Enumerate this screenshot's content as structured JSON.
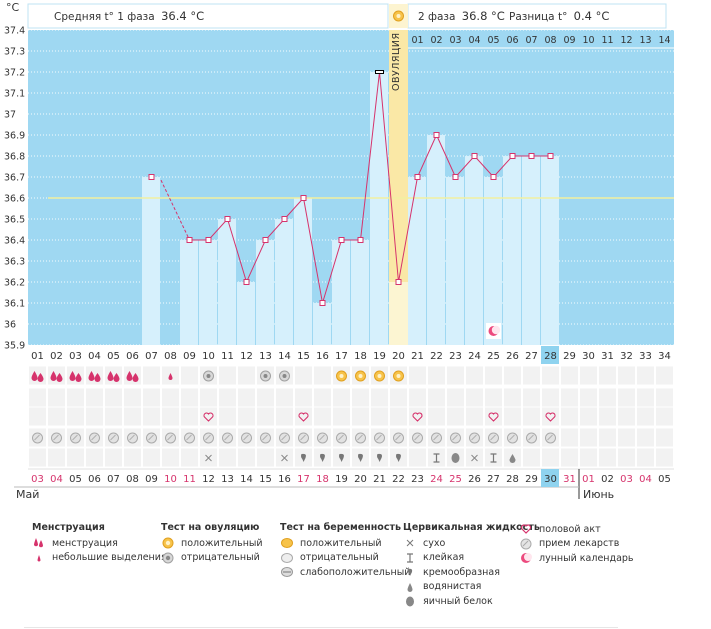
{
  "unit_label": "°C",
  "header": {
    "phase1_label": "Средняя t° 1 фаза",
    "phase1_value": "36.4 °C",
    "phase2_label": "2 фаза",
    "phase2_value": "36.8 °C",
    "diff_label": "Разница t°",
    "diff_value": "0.4 °C"
  },
  "ovulation_label": "ОВУЛЯЦИЯ",
  "colors": {
    "chart_bg": "#9fd8f2",
    "bar_fill": "#d6f0fc",
    "line": "#d6336c",
    "ovulation_band": "#fae8a6",
    "coverline": "#f2f0a0",
    "luteal_header": "#9fd8f2"
  },
  "chart_data": {
    "type": "bar",
    "ylabel": "°C",
    "ylim": [
      35.9,
      37.4
    ],
    "yticks": [
      "37.4",
      "37.3",
      "37.2",
      "37.1",
      "37",
      "36.9",
      "36.8",
      "36.7",
      "36.6",
      "36.5",
      "36.4",
      "36.3",
      "36.2",
      "36.1",
      "36",
      "35.9"
    ],
    "cycle_days": [
      "01",
      "02",
      "03",
      "04",
      "05",
      "06",
      "07",
      "08",
      "09",
      "10",
      "11",
      "12",
      "13",
      "14",
      "15",
      "16",
      "17",
      "18",
      "19",
      "20",
      "21",
      "22",
      "23",
      "24",
      "25",
      "26",
      "27",
      "28",
      "29",
      "30",
      "31",
      "32",
      "33",
      "34"
    ],
    "temperatures": [
      null,
      null,
      null,
      null,
      null,
      null,
      36.7,
      null,
      36.4,
      36.4,
      36.5,
      36.2,
      36.4,
      36.5,
      36.6,
      36.1,
      36.4,
      36.4,
      37.2,
      36.2,
      36.7,
      36.9,
      36.7,
      36.8,
      36.7,
      36.8,
      36.8,
      36.8,
      null,
      null,
      null,
      null,
      null,
      null
    ],
    "coverline": 36.6,
    "ovulation_day": "20",
    "current_day": "28",
    "luteal_days": [
      "01",
      "02",
      "03",
      "04",
      "05",
      "06",
      "07",
      "08",
      "09",
      "10",
      "11",
      "12",
      "13",
      "14"
    ]
  },
  "symptoms": {
    "menstruation": [
      "heavy",
      "heavy",
      "heavy",
      "heavy",
      "heavy",
      "heavy",
      "",
      "light",
      "",
      "",
      "",
      "",
      "",
      "",
      "",
      "",
      "",
      "",
      "",
      "",
      "",
      "",
      "",
      "",
      "",
      "",
      "",
      "",
      "",
      "",
      "",
      "",
      "",
      ""
    ],
    "ovulation_test": [
      "",
      "",
      "",
      "",
      "",
      "",
      "",
      "",
      "",
      "negative",
      "",
      "",
      "negative",
      "negative",
      "",
      "",
      "",
      "",
      "",
      "",
      "",
      "",
      "",
      "",
      "",
      "",
      "",
      "",
      "",
      "",
      "",
      "",
      "",
      ""
    ],
    "pregnancy_test": [
      "",
      "",
      "",
      "",
      "",
      "",
      "",
      "",
      "",
      "",
      "",
      "",
      "",
      "",
      "",
      "",
      "positive",
      "positive",
      "positive",
      "positive",
      "",
      "",
      "",
      "",
      "",
      "",
      "",
      "",
      "",
      "",
      "",
      "",
      "",
      ""
    ],
    "intercourse": [
      "",
      "",
      "",
      "",
      "",
      "",
      "",
      "",
      "",
      "heart",
      "",
      "",
      "",
      "",
      "heart",
      "",
      "",
      "",
      "",
      "",
      "heart",
      "",
      "",
      "",
      "heart",
      "",
      "",
      "heart",
      "",
      "",
      "",
      "",
      "",
      ""
    ],
    "medication": [
      "pill",
      "pill",
      "pill",
      "pill",
      "pill",
      "pill",
      "pill",
      "pill",
      "pill",
      "pill",
      "pill",
      "pill",
      "pill",
      "pill",
      "pill",
      "pill",
      "pill",
      "pill",
      "pill",
      "pill",
      "pill",
      "pill",
      "pill",
      "pill",
      "pill",
      "pill",
      "pill",
      "pill",
      "",
      "",
      "",
      "",
      "",
      ""
    ],
    "cervical": [
      "",
      "",
      "",
      "",
      "",
      "",
      "",
      "",
      "",
      "dry",
      "",
      "",
      "",
      "dry",
      "creamy",
      "creamy",
      "creamy",
      "creamy",
      "creamy",
      "creamy",
      "",
      "sticky",
      "eggwhite",
      "dry",
      "sticky",
      "watery",
      "",
      "",
      "",
      "",
      "",
      "",
      "",
      ""
    ],
    "moon_day": "25"
  },
  "dates": {
    "days": [
      "03",
      "04",
      "05",
      "06",
      "07",
      "08",
      "09",
      "10",
      "11",
      "12",
      "13",
      "14",
      "15",
      "16",
      "17",
      "18",
      "19",
      "20",
      "21",
      "22",
      "23",
      "24",
      "25",
      "26",
      "27",
      "28",
      "29",
      "30",
      "31",
      "01",
      "02",
      "03",
      "04",
      "05"
    ],
    "weekend": [
      "03",
      "04",
      "10",
      "11",
      "17",
      "18",
      "24",
      "25",
      "31",
      "01"
    ],
    "today": "30",
    "month_may": "Май",
    "month_june": "Июнь"
  },
  "legend": {
    "menstruation": {
      "title": "Менструация",
      "items": [
        {
          "icon": "heavy-drops-icon",
          "label": "менструация"
        },
        {
          "icon": "light-drop-icon",
          "label": "небольшие выделения"
        }
      ]
    },
    "ovulation_test": {
      "title": "Тест на овуляцию",
      "items": [
        {
          "icon": "positive-circle-icon",
          "label": "положительный"
        },
        {
          "icon": "negative-circle-icon",
          "label": "отрицательный"
        }
      ]
    },
    "pregnancy_test": {
      "title": "Тест на беременность",
      "items": [
        {
          "icon": "positive-oval-icon",
          "label": "положительный"
        },
        {
          "icon": "negative-oval-icon",
          "label": "отрицательный"
        },
        {
          "icon": "weak-oval-icon",
          "label": "слабоположительный"
        }
      ]
    },
    "cervical": {
      "title": "Цервикальная жидкость",
      "items": [
        {
          "icon": "cross-icon",
          "label": "сухо"
        },
        {
          "icon": "sticky-icon",
          "label": "клейкая"
        },
        {
          "icon": "creamy-icon",
          "label": "кремообразная"
        },
        {
          "icon": "watery-icon",
          "label": "водянистая"
        },
        {
          "icon": "egg-white-icon",
          "label": "яичный белок"
        }
      ]
    },
    "other": {
      "items": [
        {
          "icon": "heart-icon",
          "label": "половой акт"
        },
        {
          "icon": "pill-icon",
          "label": "прием лекарств"
        },
        {
          "icon": "moon-icon",
          "label": "лунный календарь"
        }
      ]
    }
  }
}
